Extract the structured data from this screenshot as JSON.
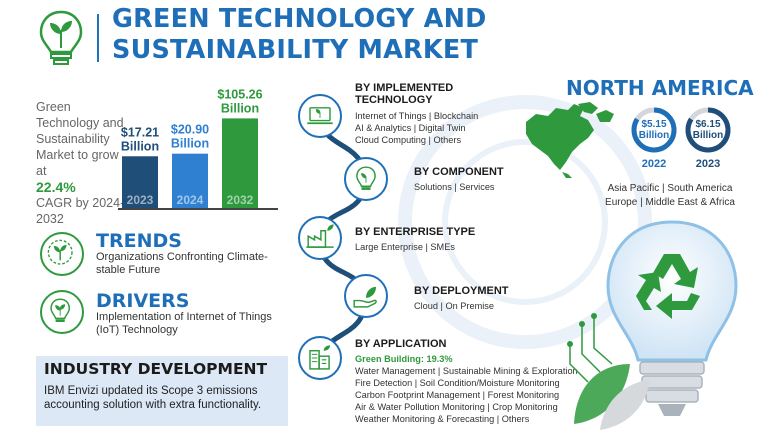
{
  "header": {
    "title_line1": "GREEN TECHNOLOGY AND",
    "title_line2": "SUSTAINABILITY MARKET"
  },
  "market": {
    "intro": "Green Technology and Sustainability Market to grow at",
    "cagr": "22.4%",
    "cagr_suffix": "CAGR by 2024-2032"
  },
  "chart_data": {
    "type": "bar",
    "categories": [
      "2023",
      "2024",
      "2032"
    ],
    "values": [
      17.21,
      20.9,
      105.26
    ],
    "value_labels": [
      "$17.21 Billion",
      "$20.90 Billion",
      "$105.26 Billion"
    ],
    "colors": [
      "#1f4e79",
      "#2f80d1",
      "#2e9a3d"
    ],
    "xlabel": "",
    "ylabel": ""
  },
  "trends": {
    "title": "TRENDS",
    "text": "Organizations Confronting Climate-stable Future"
  },
  "drivers": {
    "title": "DRIVERS",
    "text": "Implementation of Internet of Things (IoT) Technology"
  },
  "industry": {
    "title": "INDUSTRY DEVELOPMENT",
    "text": "IBM Envizi updated its Scope 3 emissions accounting solution with extra functionality."
  },
  "segments": {
    "implemented": {
      "title_line1": "BY IMPLEMENTED",
      "title_line2": "TECHNOLOGY",
      "line1": "Internet of Things  |  Blockchain",
      "line2": "AI & Analytics  |  Digital Twin",
      "line3": "Cloud Computing  |  Others"
    },
    "component": {
      "title": "BY COMPONENT",
      "line1": "Solutions  |  Services"
    },
    "enterprise": {
      "title": "BY ENTERPRISE TYPE",
      "line1": "Large Enterprise  |  SMEs"
    },
    "deployment": {
      "title": "BY DEPLOYMENT",
      "line1": "Cloud  |  On Premise"
    },
    "application": {
      "title": "BY APPLICATION",
      "highlight": "Green Building: 19.3%",
      "line1": "Water Management  |  Sustainable Mining & Exploration",
      "line2": "Fire Detection  |  Soil Condition/Moisture Monitoring",
      "line3": "Carbon Footprint Management  |  Forest Monitoring",
      "line4": "Air & Water Pollution Monitoring  |  Crop Monitoring",
      "line5": "Weather Monitoring & Forecasting  |  Others"
    }
  },
  "north_america": {
    "title": "NORTH AMERICA",
    "y2022": {
      "value": "$5.15",
      "unit": "Billion",
      "year": "2022",
      "fill": 0.84
    },
    "y2023": {
      "value": "$6.15",
      "unit": "Billion",
      "year": "2023",
      "fill": 0.84
    },
    "regions_line1": "Asia Pacific  |  South America",
    "regions_line2": "Europe  |  Middle East & Africa"
  },
  "colors": {
    "blue": "#1f6fb8",
    "green": "#2e9a3d",
    "dark_blue": "#1f4e79"
  }
}
